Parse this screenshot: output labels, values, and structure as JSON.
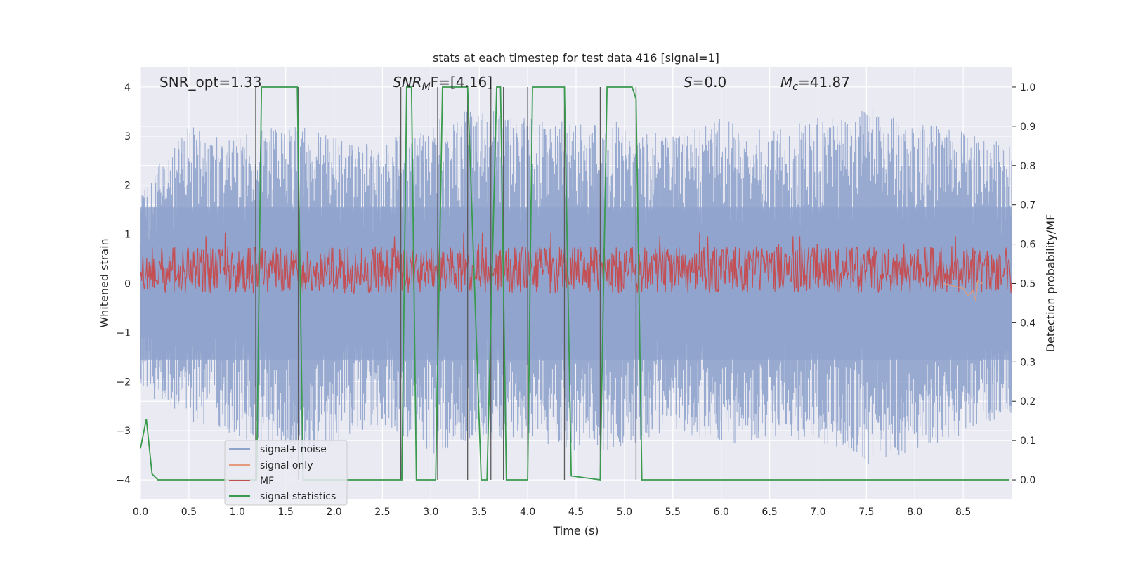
{
  "chart_data": {
    "type": "line",
    "title": "stats at each timestep for test data 416 [signal=1]",
    "xlabel": "Time (s)",
    "ylabel": "Whitened strain",
    "y2label": "Detection probability/MF",
    "xlim": [
      0,
      9.0
    ],
    "ylim": [
      -4.4,
      4.4
    ],
    "y2lim": [
      -0.05,
      1.05
    ],
    "xticks": [
      0.0,
      0.5,
      1.0,
      1.5,
      2.0,
      2.5,
      3.0,
      3.5,
      4.0,
      4.5,
      5.0,
      5.5,
      6.0,
      6.5,
      7.0,
      7.5,
      8.0,
      8.5
    ],
    "xtick_labels": [
      "0.0",
      "0.5",
      "1.0",
      "1.5",
      "2.0",
      "2.5",
      "3.0",
      "3.5",
      "4.0",
      "4.5",
      "5.0",
      "5.5",
      "6.0",
      "6.5",
      "7.0",
      "7.5",
      "8.0",
      "8.5"
    ],
    "yticks": [
      -4,
      -3,
      -2,
      -1,
      0,
      1,
      2,
      3,
      4
    ],
    "ytick_labels": [
      "−4",
      "−3",
      "−2",
      "−1",
      "0",
      "1",
      "2",
      "3",
      "4"
    ],
    "y2ticks": [
      0.0,
      0.1,
      0.2,
      0.3,
      0.4,
      0.5,
      0.6,
      0.7,
      0.8,
      0.9,
      1.0
    ],
    "y2tick_labels": [
      "0.0",
      "0.1",
      "0.2",
      "0.3",
      "0.4",
      "0.5",
      "0.6",
      "0.7",
      "0.8",
      "0.9",
      "1.0"
    ],
    "grid": true,
    "legend_position": "lower-left",
    "annotations": {
      "snr_opt": "SNR_opt=1.33",
      "snr_mf_main": "SNR",
      "snr_mf_sub": "M",
      "snr_mf_rest": "F=[4.16]",
      "s_var": "S",
      "s_rest": "=0.0",
      "mc_main": "M",
      "mc_sub": "c",
      "mc_rest": "=41.87"
    },
    "series": [
      {
        "name": "signal+ noise",
        "color": "#8fa3cc",
        "axis": "left",
        "envelope": {
          "x": [
            0.0,
            0.5,
            1.0,
            1.5,
            2.0,
            2.5,
            3.0,
            3.5,
            4.0,
            4.5,
            5.0,
            5.5,
            6.0,
            6.5,
            7.0,
            7.5,
            8.0,
            8.5,
            9.0
          ],
          "upper": [
            2.1,
            3.2,
            3.0,
            3.3,
            3.0,
            2.9,
            3.3,
            3.6,
            3.4,
            3.3,
            3.3,
            3.0,
            3.4,
            3.1,
            3.4,
            3.6,
            3.3,
            3.1,
            2.8
          ],
          "lower": [
            -2.2,
            -2.8,
            -3.1,
            -3.6,
            -3.4,
            -2.9,
            -3.5,
            -3.2,
            -3.2,
            -3.4,
            -3.4,
            -3.0,
            -3.3,
            -3.2,
            -3.2,
            -3.7,
            -3.4,
            -3.1,
            -2.7
          ]
        }
      },
      {
        "name": "signal only",
        "color": "#e39b7b",
        "axis": "left",
        "x": [
          8.3,
          8.4,
          8.5,
          8.55,
          8.6,
          8.63,
          8.65,
          8.7
        ],
        "y": [
          0.0,
          -0.05,
          -0.1,
          -0.25,
          -0.15,
          -0.35,
          0.05,
          0.0
        ]
      },
      {
        "name": "MF",
        "color": "#c44e52",
        "axis": "right",
        "center": 0.535,
        "amplitude": 0.06,
        "peaks": [
          0.6,
          0.62,
          0.63
        ]
      },
      {
        "name": "signal statistics",
        "color": "#3a9a4d",
        "axis": "right",
        "x": [
          0.0,
          0.06,
          0.12,
          0.18,
          1.2,
          1.25,
          1.62,
          1.68,
          2.7,
          2.75,
          2.8,
          2.85,
          3.05,
          3.12,
          3.38,
          3.52,
          3.58,
          3.68,
          3.72,
          3.78,
          3.82,
          4.0,
          4.05,
          4.38,
          4.45,
          4.75,
          4.82,
          5.08,
          5.12,
          5.18,
          8.98
        ],
        "y": [
          0.08,
          0.155,
          0.015,
          0.0,
          0.0,
          1.0,
          1.0,
          0.0,
          0.0,
          1.0,
          1.0,
          0.0,
          0.0,
          1.0,
          1.0,
          0.0,
          0.0,
          1.0,
          1.0,
          0.0,
          0.0,
          0.0,
          1.0,
          1.0,
          0.01,
          0.0,
          1.0,
          1.0,
          0.97,
          0.0,
          0.0
        ]
      }
    ],
    "vertical_markers": [
      1.19,
      1.63,
      2.69,
      3.07,
      3.38,
      3.62,
      3.75,
      4.0,
      4.38,
      4.75,
      5.12
    ]
  }
}
